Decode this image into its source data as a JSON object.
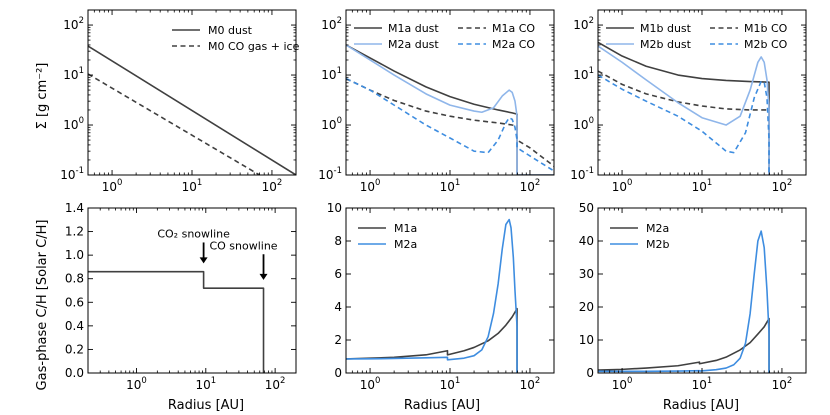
{
  "figure": {
    "ylabel_top": "Σ [g cm⁻²]",
    "ylabel_bottom": "Gas-phase C/H [Solar C/H]",
    "xlabel": "Radius [AU]"
  },
  "colors": {
    "dark": "#404040",
    "light": "#8fb6ea",
    "blue": "#3e8de0"
  },
  "chart_data": [
    {
      "id": "p1",
      "type": "line",
      "xscale": "log",
      "yscale": "log",
      "xlim": [
        0.5,
        200
      ],
      "ylim": [
        0.1,
        200
      ],
      "xticks": [
        {
          "v": 1,
          "b": "10",
          "e": "0"
        },
        {
          "v": 10,
          "b": "10",
          "e": "1"
        },
        {
          "v": 100,
          "b": "10",
          "e": "2"
        }
      ],
      "yticks": [
        {
          "v": 0.1,
          "b": "10",
          "e": "-1"
        },
        {
          "v": 1,
          "b": "10",
          "e": "0"
        },
        {
          "v": 10,
          "b": "10",
          "e": "1"
        },
        {
          "v": 100,
          "b": "10",
          "e": "2"
        }
      ],
      "legend_cols": 1,
      "series": [
        {
          "name": "M0 dust",
          "color": "dark",
          "dash": false,
          "x": [
            0.5,
            200
          ],
          "y": [
            38,
            0.1
          ]
        },
        {
          "name": "M0 CO gas + ice",
          "color": "dark",
          "dash": true,
          "x": [
            0.5,
            70
          ],
          "y": [
            10.5,
            0.1
          ]
        }
      ]
    },
    {
      "id": "p2",
      "type": "line",
      "xscale": "log",
      "yscale": "log",
      "xlim": [
        0.5,
        200
      ],
      "ylim": [
        0.1,
        200
      ],
      "xticks": [
        {
          "v": 1,
          "b": "10",
          "e": "0"
        },
        {
          "v": 10,
          "b": "10",
          "e": "1"
        },
        {
          "v": 100,
          "b": "10",
          "e": "2"
        }
      ],
      "yticks": [
        {
          "v": 0.1,
          "b": "10",
          "e": "-1"
        },
        {
          "v": 1,
          "b": "10",
          "e": "0"
        },
        {
          "v": 10,
          "b": "10",
          "e": "1"
        },
        {
          "v": 100,
          "b": "10",
          "e": "2"
        }
      ],
      "legend_cols": 2,
      "series": [
        {
          "name": "M1a dust",
          "color": "dark",
          "dash": false,
          "x": [
            0.5,
            1,
            2,
            5,
            10,
            20,
            40,
            60,
            69,
            69,
            200
          ],
          "y": [
            40,
            22,
            12,
            5.8,
            3.7,
            2.6,
            2.0,
            1.75,
            1.65,
            0.1,
            0.1
          ]
        },
        {
          "name": "M1a CO",
          "color": "dark",
          "dash": true,
          "x": [
            0.5,
            1,
            2,
            5,
            10,
            20,
            40,
            60,
            69,
            69,
            100,
            200
          ],
          "y": [
            8.5,
            5,
            3.1,
            1.9,
            1.5,
            1.25,
            1.1,
            1.0,
            0.98,
            0.5,
            0.35,
            0.15
          ]
        },
        {
          "name": "M2a dust",
          "color": "light",
          "dash": false,
          "x": [
            0.5,
            1,
            2,
            5,
            10,
            20,
            25,
            35,
            45,
            55,
            60,
            65,
            69,
            69,
            200
          ],
          "y": [
            40,
            20,
            10,
            4.2,
            2.5,
            1.9,
            1.8,
            2.2,
            3.8,
            5.0,
            4.5,
            3.0,
            1.5,
            0.1,
            0.1
          ]
        },
        {
          "name": "M2a CO",
          "color": "blue",
          "dash": true,
          "x": [
            0.5,
            1,
            2,
            5,
            10,
            20,
            30,
            40,
            50,
            55,
            60,
            65,
            69,
            69,
            200
          ],
          "y": [
            8.5,
            5,
            2.5,
            1.0,
            0.55,
            0.3,
            0.28,
            0.5,
            1.1,
            1.4,
            1.3,
            0.9,
            0.5,
            0.35,
            0.12
          ]
        }
      ]
    },
    {
      "id": "p3",
      "type": "line",
      "xscale": "log",
      "yscale": "log",
      "xlim": [
        0.5,
        200
      ],
      "ylim": [
        0.1,
        200
      ],
      "xticks": [
        {
          "v": 1,
          "b": "10",
          "e": "0"
        },
        {
          "v": 10,
          "b": "10",
          "e": "1"
        },
        {
          "v": 100,
          "b": "10",
          "e": "2"
        }
      ],
      "yticks": [
        {
          "v": 0.1,
          "b": "10",
          "e": "-1"
        },
        {
          "v": 1,
          "b": "10",
          "e": "0"
        },
        {
          "v": 10,
          "b": "10",
          "e": "1"
        },
        {
          "v": 100,
          "b": "10",
          "e": "2"
        }
      ],
      "legend_cols": 2,
      "series": [
        {
          "name": "M1b dust",
          "color": "dark",
          "dash": false,
          "x": [
            0.5,
            1,
            2,
            5,
            10,
            20,
            40,
            69,
            69
          ],
          "y": [
            45,
            24,
            15,
            10,
            8.5,
            7.8,
            7.4,
            7.2,
            0.1
          ]
        },
        {
          "name": "M1b CO",
          "color": "dark",
          "dash": true,
          "x": [
            0.5,
            1,
            2,
            5,
            10,
            20,
            40,
            69
          ],
          "y": [
            12,
            6.5,
            4.2,
            2.9,
            2.4,
            2.1,
            2.0,
            2.0
          ]
        },
        {
          "name": "M2b dust",
          "color": "light",
          "dash": false,
          "x": [
            0.5,
            1,
            2,
            5,
            10,
            20,
            30,
            40,
            50,
            55,
            60,
            65,
            69,
            69
          ],
          "y": [
            38,
            18,
            8,
            2.8,
            1.4,
            1.0,
            1.5,
            5,
            18,
            23,
            18,
            8,
            2,
            0.1
          ]
        },
        {
          "name": "M2b CO",
          "color": "blue",
          "dash": true,
          "x": [
            0.5,
            1,
            2,
            5,
            10,
            20,
            25,
            35,
            45,
            55,
            60,
            65,
            69,
            69
          ],
          "y": [
            10,
            5.2,
            3,
            1.5,
            0.75,
            0.3,
            0.28,
            0.7,
            3.5,
            7.5,
            7.2,
            3.5,
            0.5,
            0.1
          ]
        }
      ]
    },
    {
      "id": "p4",
      "type": "line",
      "xscale": "log",
      "yscale": "linear",
      "xlim": [
        0.2,
        200
      ],
      "ylim": [
        0,
        1.4
      ],
      "xticks": [
        {
          "v": 1,
          "b": "10",
          "e": "0"
        },
        {
          "v": 10,
          "b": "10",
          "e": "1"
        },
        {
          "v": 100,
          "b": "10",
          "e": "2"
        }
      ],
      "yticks": [
        {
          "v": 0,
          "t": "0.0"
        },
        {
          "v": 0.2,
          "t": "0.2"
        },
        {
          "v": 0.4,
          "t": "0.4"
        },
        {
          "v": 0.6,
          "t": "0.6"
        },
        {
          "v": 0.8,
          "t": "0.8"
        },
        {
          "v": 1.0,
          "t": "1.0"
        },
        {
          "v": 1.2,
          "t": "1.2"
        },
        {
          "v": 1.4,
          "t": "1.4"
        }
      ],
      "legend_cols": 0,
      "series": [
        {
          "name": "C/H",
          "color": "dark",
          "dash": false,
          "x": [
            0.2,
            9.3,
            9.3,
            68,
            68
          ],
          "y": [
            0.86,
            0.86,
            0.72,
            0.72,
            0
          ]
        }
      ],
      "annotations": [
        {
          "text": "CO₂ snowline",
          "x": 9.3,
          "y": 1.15,
          "arrow_y": 0.93
        },
        {
          "text": "CO snowline",
          "x": 68,
          "y": 1.05,
          "arrow_y": 0.79
        }
      ]
    },
    {
      "id": "p5",
      "type": "line",
      "xscale": "log",
      "yscale": "linear",
      "xlim": [
        0.5,
        200
      ],
      "ylim": [
        0,
        10
      ],
      "xticks": [
        {
          "v": 1,
          "b": "10",
          "e": "0"
        },
        {
          "v": 10,
          "b": "10",
          "e": "1"
        },
        {
          "v": 100,
          "b": "10",
          "e": "2"
        }
      ],
      "yticks": [
        {
          "v": 0,
          "t": "0"
        },
        {
          "v": 2,
          "t": "2"
        },
        {
          "v": 4,
          "t": "4"
        },
        {
          "v": 6,
          "t": "6"
        },
        {
          "v": 8,
          "t": "8"
        },
        {
          "v": 10,
          "t": "10"
        }
      ],
      "legend_cols": 1,
      "series": [
        {
          "name": "M1a",
          "color": "dark",
          "dash": false,
          "x": [
            0.5,
            1,
            2,
            5,
            9.3,
            9.3,
            15,
            20,
            30,
            40,
            50,
            60,
            69,
            69
          ],
          "y": [
            0.85,
            0.9,
            0.95,
            1.1,
            1.35,
            1.1,
            1.35,
            1.55,
            1.95,
            2.4,
            2.9,
            3.4,
            3.9,
            0
          ]
        },
        {
          "name": "M2a",
          "color": "blue",
          "dash": false,
          "x": [
            0.5,
            1,
            2,
            5,
            9.3,
            9.3,
            15,
            20,
            25,
            30,
            35,
            40,
            45,
            50,
            55,
            58,
            62,
            65,
            69,
            69
          ],
          "y": [
            0.85,
            0.86,
            0.88,
            0.92,
            0.95,
            0.8,
            0.9,
            1.05,
            1.4,
            2.2,
            3.6,
            5.4,
            7.5,
            9.0,
            9.3,
            8.8,
            7.0,
            5.0,
            2.8,
            0
          ]
        }
      ]
    },
    {
      "id": "p6",
      "type": "line",
      "xscale": "log",
      "yscale": "linear",
      "xlim": [
        0.5,
        200
      ],
      "ylim": [
        0,
        50
      ],
      "xticks": [
        {
          "v": 1,
          "b": "10",
          "e": "0"
        },
        {
          "v": 10,
          "b": "10",
          "e": "1"
        },
        {
          "v": 100,
          "b": "10",
          "e": "2"
        }
      ],
      "yticks": [
        {
          "v": 0,
          "t": "0"
        },
        {
          "v": 10,
          "t": "10"
        },
        {
          "v": 20,
          "t": "20"
        },
        {
          "v": 30,
          "t": "30"
        },
        {
          "v": 40,
          "t": "40"
        },
        {
          "v": 50,
          "t": "50"
        }
      ],
      "legend_cols": 1,
      "series": [
        {
          "name": "M2a",
          "color": "dark",
          "dash": false,
          "x": [
            0.5,
            1,
            2,
            5,
            9.3,
            9.3,
            15,
            20,
            30,
            40,
            50,
            60,
            69,
            69
          ],
          "y": [
            0.9,
            1.1,
            1.5,
            2.2,
            3.3,
            2.8,
            3.8,
            4.8,
            7.0,
            9.2,
            11.8,
            14.0,
            16.5,
            0
          ]
        },
        {
          "name": "M2b",
          "color": "blue",
          "dash": false,
          "x": [
            0.5,
            1,
            2,
            5,
            9.3,
            9.3,
            15,
            20,
            25,
            30,
            35,
            40,
            45,
            50,
            55,
            60,
            65,
            69,
            69
          ],
          "y": [
            0.5,
            0.5,
            0.5,
            0.6,
            0.7,
            0.6,
            1.0,
            1.5,
            2.5,
            4.5,
            9,
            18,
            30,
            40,
            43,
            38,
            25,
            12,
            0
          ]
        }
      ]
    }
  ]
}
